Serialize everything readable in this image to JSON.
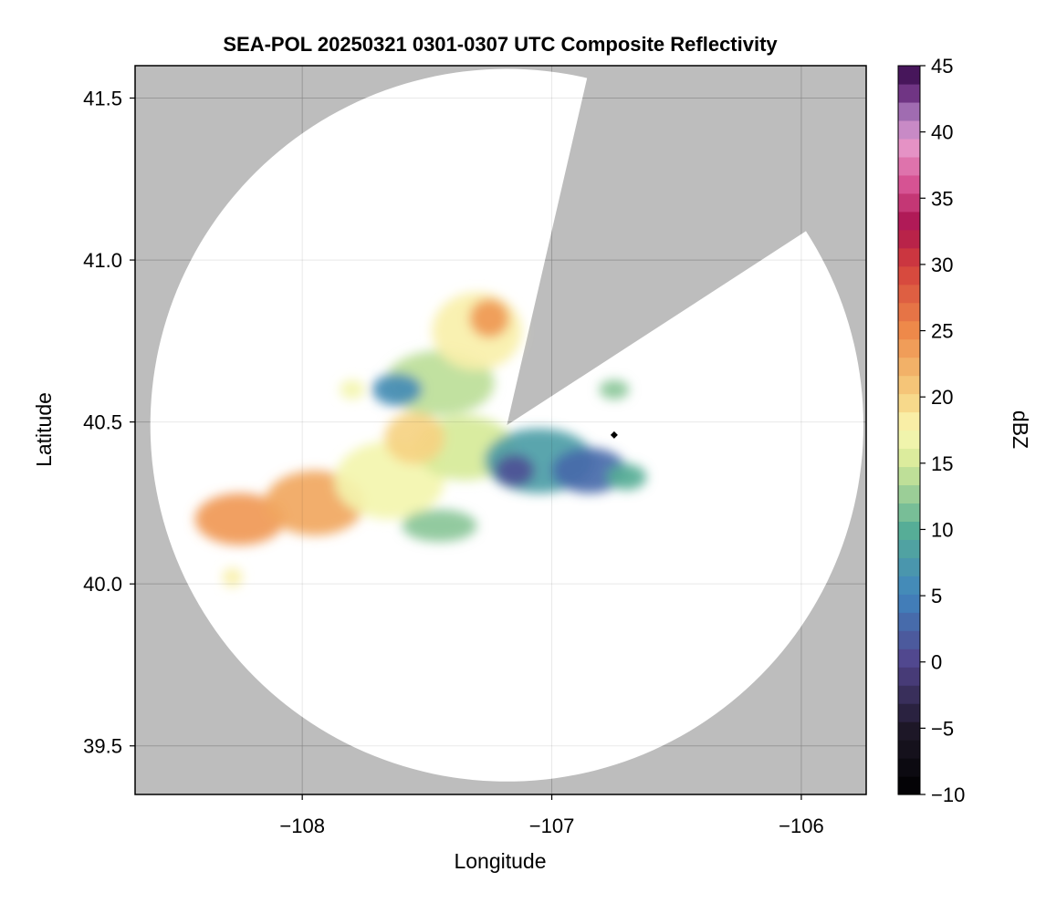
{
  "chart_data": {
    "type": "heatmap",
    "title": "SEA-POL 20250321 0301-0307 UTC Composite Reflectivity",
    "xlabel": "Longitude",
    "ylabel": "Latitude",
    "xlim": [
      -108.67,
      -105.74
    ],
    "ylim": [
      39.35,
      41.6
    ],
    "xticks": [
      -108,
      -107,
      -106
    ],
    "xtick_labels": [
      "−108",
      "−107",
      "−106"
    ],
    "yticks": [
      39.5,
      40.0,
      40.5,
      41.0,
      41.5
    ],
    "ytick_labels": [
      "39.5",
      "40.0",
      "40.5",
      "41.0",
      "41.5"
    ],
    "grid": true,
    "radar": {
      "center": [
        -107.18,
        40.49
      ],
      "range_lat_deg": 1.1,
      "blanked_sectors_deg_clockwise_from_north": [
        [
          13,
          57
        ]
      ],
      "outside_range_color": "#bdbdbd"
    },
    "colorbar": {
      "label": "dBZ",
      "min": -10,
      "max": 45,
      "ticks": [
        -10,
        -5,
        0,
        5,
        10,
        15,
        20,
        25,
        30,
        35,
        40,
        45
      ],
      "tick_labels": [
        "−10",
        "−5",
        "0",
        "5",
        "10",
        "15",
        "20",
        "25",
        "30",
        "35",
        "40",
        "45"
      ],
      "colormap": "spectral-like (black, dark purple, blue, teal, green, pale yellow, orange, red, magenta, pink, lilac, purple)"
    },
    "echo_regions": [
      {
        "lon": -108.25,
        "lat": 40.2,
        "rx": 0.18,
        "ry": 0.08,
        "dbz": 24
      },
      {
        "lon": -107.95,
        "lat": 40.25,
        "rx": 0.2,
        "ry": 0.1,
        "dbz": 23
      },
      {
        "lon": -107.65,
        "lat": 40.32,
        "rx": 0.22,
        "ry": 0.12,
        "dbz": 17
      },
      {
        "lon": -107.35,
        "lat": 40.42,
        "rx": 0.2,
        "ry": 0.1,
        "dbz": 15
      },
      {
        "lon": -107.45,
        "lat": 40.62,
        "rx": 0.22,
        "ry": 0.1,
        "dbz": 14
      },
      {
        "lon": -107.3,
        "lat": 40.78,
        "rx": 0.18,
        "ry": 0.12,
        "dbz": 18
      },
      {
        "lon": -107.25,
        "lat": 40.82,
        "rx": 0.08,
        "ry": 0.06,
        "dbz": 24
      },
      {
        "lon": -107.62,
        "lat": 40.6,
        "rx": 0.1,
        "ry": 0.05,
        "dbz": 6
      },
      {
        "lon": -107.05,
        "lat": 40.38,
        "rx": 0.22,
        "ry": 0.1,
        "dbz": 8
      },
      {
        "lon": -106.85,
        "lat": 40.35,
        "rx": 0.15,
        "ry": 0.07,
        "dbz": 3
      },
      {
        "lon": -107.15,
        "lat": 40.35,
        "rx": 0.08,
        "ry": 0.05,
        "dbz": 1
      },
      {
        "lon": -106.7,
        "lat": 40.33,
        "rx": 0.08,
        "ry": 0.04,
        "dbz": 10
      },
      {
        "lon": -107.55,
        "lat": 40.45,
        "rx": 0.12,
        "ry": 0.08,
        "dbz": 20
      },
      {
        "lon": -107.45,
        "lat": 40.18,
        "rx": 0.15,
        "ry": 0.05,
        "dbz": 12
      },
      {
        "lon": -108.28,
        "lat": 40.02,
        "rx": 0.04,
        "ry": 0.03,
        "dbz": 18
      },
      {
        "lon": -107.8,
        "lat": 40.6,
        "rx": 0.05,
        "ry": 0.03,
        "dbz": 17
      },
      {
        "lon": -106.75,
        "lat": 40.6,
        "rx": 0.06,
        "ry": 0.03,
        "dbz": 12
      }
    ],
    "point_marker": {
      "lon": -106.75,
      "lat": 40.46,
      "shape": "diamond",
      "color": "#000000"
    }
  }
}
